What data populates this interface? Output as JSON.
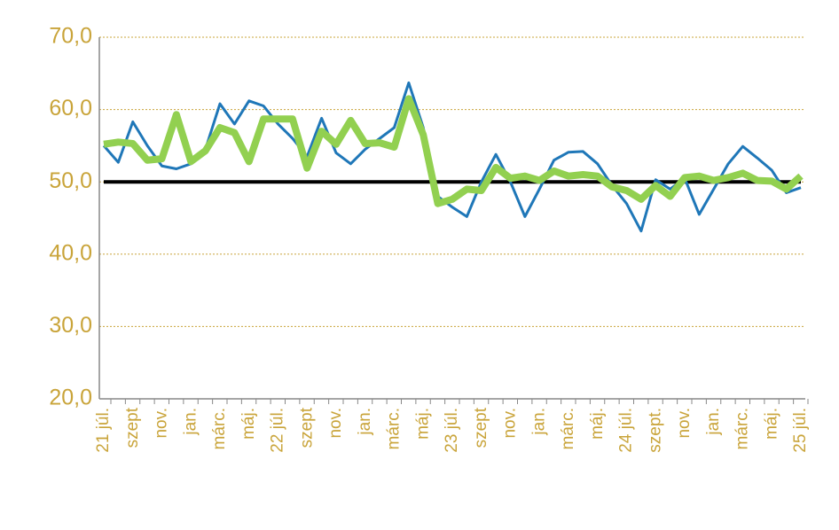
{
  "chart_data": {
    "type": "line",
    "categories": [
      "21 júl.",
      null,
      "szept",
      null,
      "nov.",
      null,
      "jan.",
      null,
      "márc.",
      null,
      "máj.",
      null,
      "22 júl.",
      null,
      "szept",
      null,
      "nov.",
      null,
      "jan.",
      null,
      "márc.",
      null,
      "máj.",
      null,
      "23 júl.",
      null,
      "szept",
      null,
      "nov.",
      null,
      "jan.",
      null,
      "márc.",
      null,
      "máj.",
      null,
      "24 júl.",
      null,
      "szept.",
      null,
      "nov.",
      null,
      "jan.",
      null,
      "márc.",
      null,
      "máj.",
      null,
      "25 júl."
    ],
    "series": [
      {
        "color": "#1f77b8",
        "width": 3,
        "values": [
          55,
          52.7,
          58.3,
          55,
          52.2,
          51.8,
          52.5,
          54.5,
          60.8,
          58,
          61.2,
          60.5,
          58,
          56,
          53.5,
          58.8,
          54,
          52.5,
          54.5,
          56,
          57.5,
          63.7,
          57.5,
          48,
          46.5,
          45.2,
          50,
          53.8,
          50,
          45.2,
          49,
          53,
          54.1,
          54.2,
          52.5,
          49.5,
          47,
          43.2,
          50.3,
          49,
          50.5,
          45.5,
          49,
          52.5,
          54.9,
          53.3,
          51.6,
          48.5,
          49.2
        ]
      },
      {
        "color": "#92d050",
        "width": 8,
        "values": [
          55.2,
          55.5,
          55.3,
          53,
          53.2,
          59.3,
          52.8,
          54.3,
          57.5,
          56.8,
          52.8,
          58.7,
          58.7,
          58.7,
          51.9,
          57,
          55.2,
          58.5,
          55.3,
          55.4,
          54.8,
          61.5,
          56.5,
          47,
          47.6,
          49,
          48.8,
          52,
          50.5,
          50.8,
          50.2,
          51.5,
          50.8,
          51,
          50.8,
          49.3,
          48.8,
          47.6,
          49.5,
          48,
          50.6,
          50.8,
          50.2,
          50.6,
          51.2,
          50.2,
          50.1,
          49,
          50.8
        ]
      }
    ],
    "reference_line": {
      "value": 50,
      "color": "#000000"
    },
    "ylim": [
      20,
      70
    ],
    "yticks": [
      {
        "value": 20,
        "label": "20,0"
      },
      {
        "value": 30,
        "label": "30,0"
      },
      {
        "value": 40,
        "label": "40,0"
      },
      {
        "value": 50,
        "label": "50,0"
      },
      {
        "value": 60,
        "label": "60,0"
      },
      {
        "value": 70,
        "label": "70,0"
      }
    ],
    "grid": true
  }
}
